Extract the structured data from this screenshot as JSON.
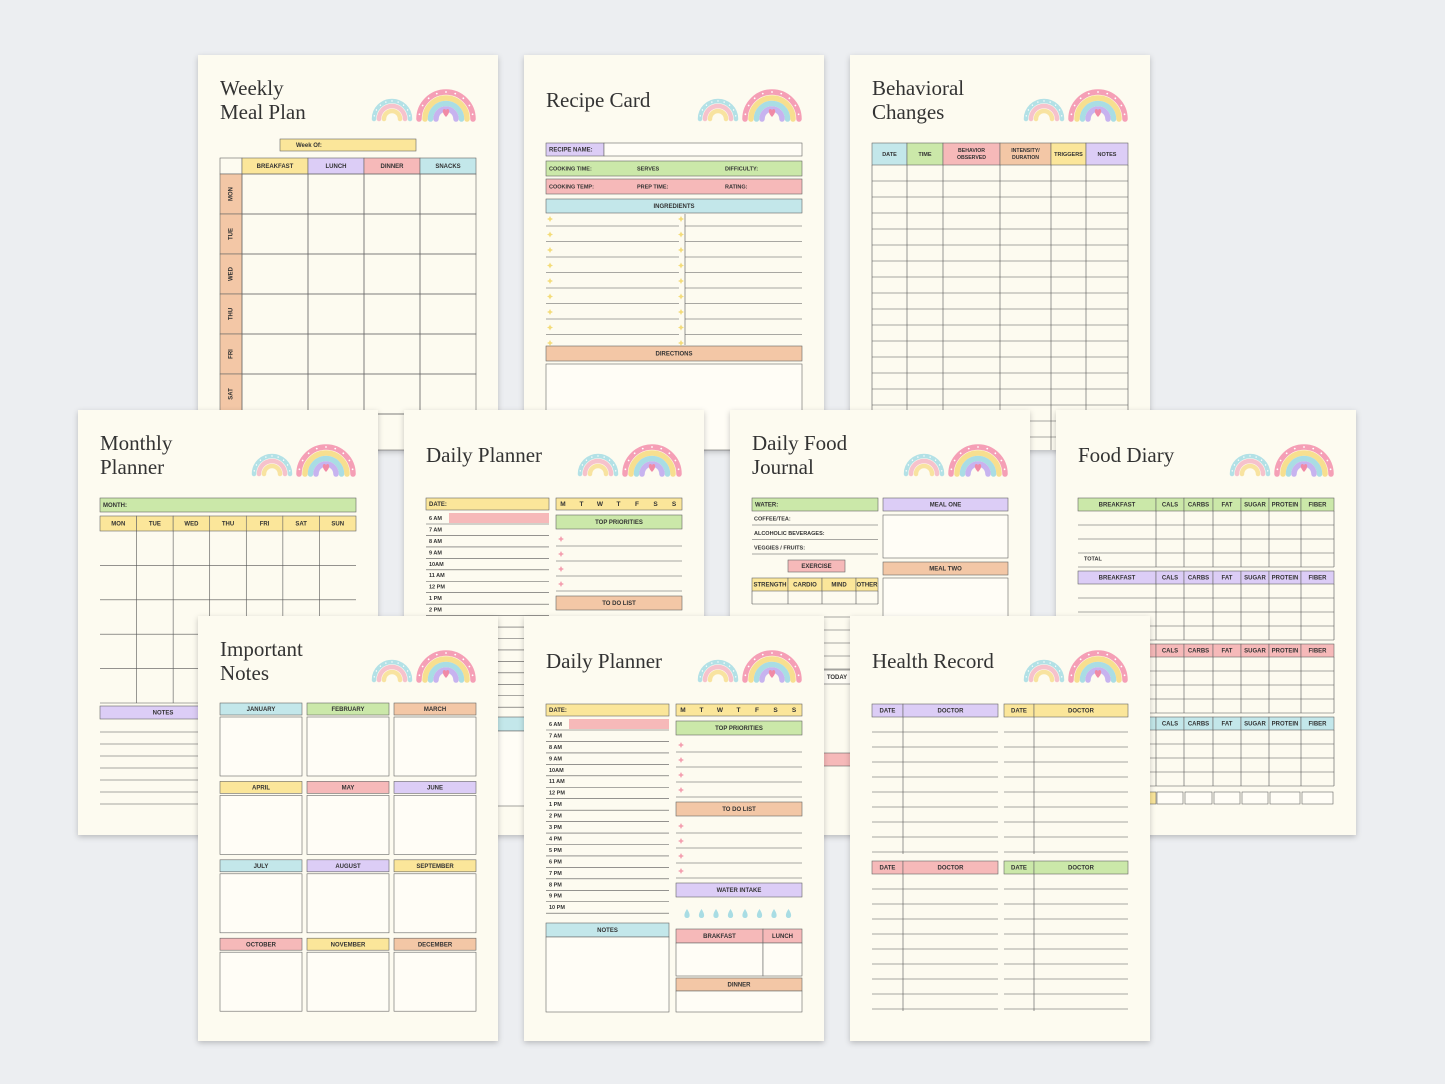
{
  "weekly_meal_plan": {
    "title": [
      "Weekly",
      "Meal Plan"
    ],
    "week_of": "Week Of:",
    "columns": [
      "BREAKFAST",
      "LUNCH",
      "DINNER",
      "SNACKS"
    ],
    "days": [
      "MON",
      "TUE",
      "WED",
      "THU",
      "FRI",
      "SAT"
    ]
  },
  "recipe_card": {
    "title": "Recipe Card",
    "recipe_name": "RECIPE NAME:",
    "row1": [
      "COOKING TIME:",
      "SERVES",
      "DIFFICULTY:"
    ],
    "row2": [
      "COOKING TEMP:",
      "PREP TIME:",
      "RATING:"
    ],
    "ingredients": "INGREDIENTS",
    "directions": "DIRECTIONS"
  },
  "behavioral_changes": {
    "title": [
      "Behavioral",
      "Changes"
    ],
    "columns": [
      "DATE",
      "TIME",
      [
        "BEHAVIOR",
        "OBSERVED"
      ],
      [
        "INTENSITY/",
        "DURATION"
      ],
      "TRIGGERS",
      "NOTES"
    ]
  },
  "monthly_planner": {
    "title": [
      "Monthly",
      "Planner"
    ],
    "month": "MONTH:",
    "days": [
      "MON",
      "TUE",
      "WED",
      "THU",
      "FRI",
      "SAT",
      "SUN"
    ],
    "notes": "NOTES"
  },
  "daily_planner_back": {
    "title": "Daily Planner",
    "date": "DATE:",
    "weekdays": [
      "M",
      "T",
      "W",
      "T",
      "F",
      "S",
      "S"
    ],
    "hours": [
      "6 AM",
      "7 AM",
      "8 AM",
      "9 AM",
      "10AM",
      "11 AM",
      "12 PM",
      "1 PM",
      "2 PM"
    ],
    "top_priorities": "TOP PRIORITIES",
    "to_do": "TO DO LIST"
  },
  "daily_food_journal": {
    "title": [
      "Daily Food",
      "Journal"
    ],
    "water": "WATER:",
    "items": [
      "COFFEE/TEA:",
      "ALCOHOLIC BEVERAGES:",
      "VEGGIES / FRUITS:"
    ],
    "exercise": "EXERCISE",
    "exercise_columns": [
      "STRENGTH",
      "CARDIO",
      "MIND",
      "OTHER"
    ],
    "meal_one": "MEAL ONE",
    "meal_two": "MEAL TWO",
    "today": "TODAY"
  },
  "food_diary": {
    "title": "Food Diary",
    "section_labels": [
      "BREAKFAST",
      "BREAKFAST"
    ],
    "columns": [
      "CALS",
      "CARBS",
      "FAT",
      "SUGAR",
      "PROTEIN",
      "FIBER"
    ],
    "total": "TOTAL"
  },
  "important_notes": {
    "title": [
      "Important",
      "Notes"
    ],
    "months": [
      "JANUARY",
      "FEBRUARY",
      "MARCH",
      "APRIL",
      "MAY",
      "JUNE",
      "JULY",
      "AUGUST",
      "SEPTEMBER",
      "OCTOBER",
      "NOVEMBER",
      "DECEMBER"
    ]
  },
  "daily_planner": {
    "title": "Daily Planner",
    "date": "DATE:",
    "weekdays": [
      "M",
      "T",
      "W",
      "T",
      "F",
      "S",
      "S"
    ],
    "hours": [
      "6 AM",
      "7 AM",
      "8 AM",
      "9 AM",
      "10AM",
      "11 AM",
      "12 PM",
      "1 PM",
      "2 PM",
      "3 PM",
      "4 PM",
      "5 PM",
      "6 PM",
      "7 PM",
      "8 PM",
      "9 PM",
      "10 PM"
    ],
    "top_priorities": "TOP PRIORITIES",
    "to_do": "TO DO LIST",
    "water_intake": "WATER INTAKE",
    "notes": "NOTES",
    "meals": [
      "BRAKFAST",
      "LUNCH"
    ],
    "dinner": "DINNER"
  },
  "health_record": {
    "title": "Health Record",
    "columns": [
      "DATE",
      "DOCTOR"
    ]
  }
}
